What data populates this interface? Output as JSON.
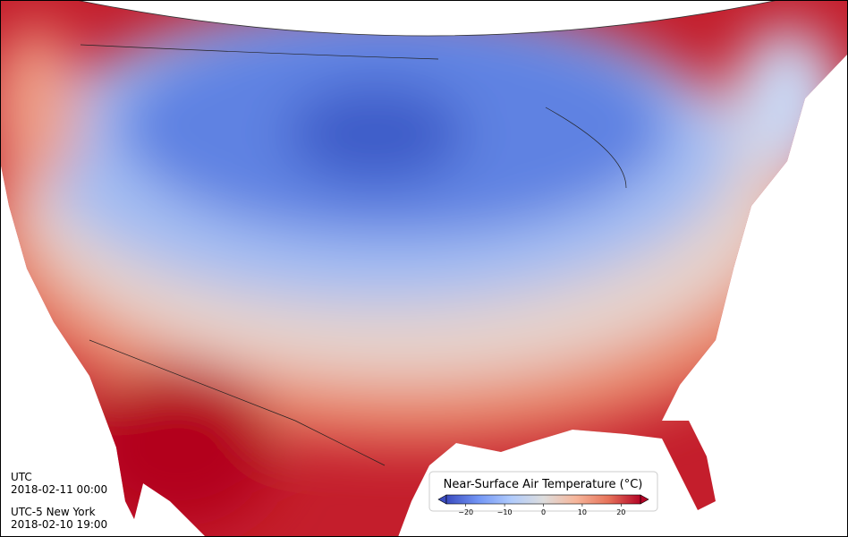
{
  "times": {
    "utc_label": "UTC",
    "utc_time": "2018-02-11 00:00",
    "local_label": "UTC-5 New York",
    "local_time": "2018-02-10 19:00"
  },
  "colorbar": {
    "title": "Near-Surface Air Temperature (°C)",
    "lim": [
      -25,
      25
    ],
    "ticks": [
      {
        "value": -20,
        "label": "−20"
      },
      {
        "value": -10,
        "label": "−10"
      },
      0,
      10,
      20
    ],
    "colors": [
      "#3b4cc0",
      "#7396f5",
      "#b0cbfc",
      "#dddddd",
      "#f6b69b",
      "#e7745b",
      "#b40426"
    ]
  }
}
